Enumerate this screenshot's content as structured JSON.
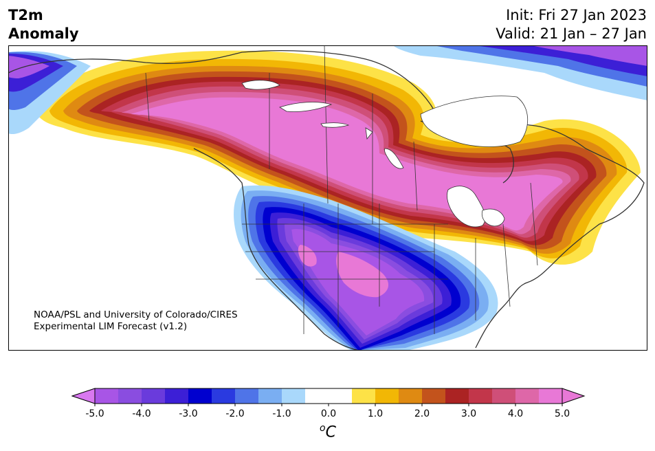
{
  "header": {
    "title_line1": "T2m",
    "title_line2": "Anomaly",
    "init_text": "Init: Fri 27 Jan 2023",
    "valid_text": "Valid: 21 Jan – 27 Jan"
  },
  "map": {
    "region": "North America",
    "field": "2-meter temperature anomaly"
  },
  "credit": {
    "line1": "NOAA/PSL and University of Colorado/CIRES",
    "line2": "Experimental LIM Forecast (v1.2)"
  },
  "colorbar": {
    "unit_base": "C",
    "unit_sup": "o",
    "ticks": [
      "-5.0",
      "-4.0",
      "-3.0",
      "-2.0",
      "-1.0",
      "0.0",
      "1.0",
      "2.0",
      "3.0",
      "4.0",
      "5.0"
    ],
    "bins": [
      {
        "range": [
          -5.0,
          -4.5
        ],
        "color": "#a855e6"
      },
      {
        "range": [
          -4.5,
          -4.0
        ],
        "color": "#8a4de0"
      },
      {
        "range": [
          -4.0,
          -3.5
        ],
        "color": "#6a3bdc"
      },
      {
        "range": [
          -3.5,
          -3.0
        ],
        "color": "#3c1fd6"
      },
      {
        "range": [
          -3.0,
          -2.5
        ],
        "color": "#0000cf"
      },
      {
        "range": [
          -2.5,
          -2.0
        ],
        "color": "#2a3ae0"
      },
      {
        "range": [
          -2.0,
          -1.5
        ],
        "color": "#4f74e8"
      },
      {
        "range": [
          -1.5,
          -1.0
        ],
        "color": "#7aaef2"
      },
      {
        "range": [
          -1.0,
          -0.5
        ],
        "color": "#a9d8fb"
      },
      {
        "range": [
          -0.5,
          0.0
        ],
        "color": "#ffffff"
      },
      {
        "range": [
          0.0,
          0.5
        ],
        "color": "#ffffff"
      },
      {
        "range": [
          0.5,
          1.0
        ],
        "color": "#fde247"
      },
      {
        "range": [
          1.0,
          1.5
        ],
        "color": "#f2b705"
      },
      {
        "range": [
          1.5,
          2.0
        ],
        "color": "#df8a12"
      },
      {
        "range": [
          2.0,
          2.5
        ],
        "color": "#c3531c"
      },
      {
        "range": [
          2.5,
          3.0
        ],
        "color": "#ab2323"
      },
      {
        "range": [
          3.0,
          3.5
        ],
        "color": "#c2364a"
      },
      {
        "range": [
          3.5,
          4.0
        ],
        "color": "#cf4f78"
      },
      {
        "range": [
          4.0,
          4.5
        ],
        "color": "#de67a8"
      },
      {
        "range": [
          4.5,
          5.0
        ],
        "color": "#e878d6"
      }
    ],
    "under_color": "#d978f0",
    "over_color": "#e878d6"
  }
}
